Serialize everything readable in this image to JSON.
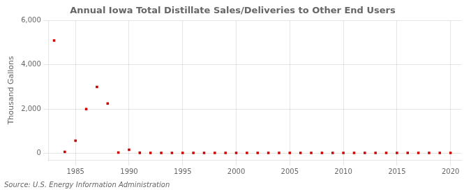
{
  "chart_data": {
    "type": "scatter",
    "title": "Annual Iowa Total Distillate Sales/Deliveries to Other End Users",
    "ylabel": "Thousand Gallons",
    "annotations": [
      "Source: U.S. Energy Information Administration"
    ],
    "x": [
      1983,
      1984,
      1985,
      1986,
      1987,
      1988,
      1989,
      1990,
      1991,
      1992,
      1993,
      1994,
      1995,
      1996,
      1997,
      1998,
      1999,
      2000,
      2001,
      2002,
      2003,
      2004,
      2005,
      2006,
      2007,
      2008,
      2009,
      2010,
      2011,
      2012,
      2013,
      2014,
      2015,
      2016,
      2017,
      2018,
      2019,
      2020
    ],
    "values": [
      5100,
      60,
      570,
      2000,
      3000,
      2250,
      30,
      160,
      20,
      15,
      15,
      15,
      15,
      15,
      15,
      15,
      15,
      15,
      15,
      15,
      15,
      15,
      15,
      15,
      15,
      15,
      15,
      15,
      15,
      15,
      15,
      15,
      15,
      15,
      15,
      15,
      15,
      15
    ],
    "color": "#cc0000",
    "marker": "square",
    "xlim": [
      1982.5,
      2021
    ],
    "xticks": [
      1985,
      1990,
      1995,
      2000,
      2005,
      2010,
      2015,
      2020
    ],
    "ylim": [
      -300,
      6000
    ],
    "yticks": [
      0,
      {
        "value": 2000,
        "label": "2,000"
      },
      {
        "value": 4000,
        "label": "4,000"
      },
      {
        "value": 6000,
        "label": "6,000"
      }
    ],
    "grid": true
  }
}
